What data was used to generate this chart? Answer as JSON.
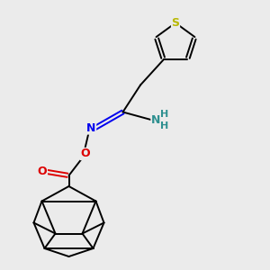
{
  "background_color": "#ebebeb",
  "figsize": [
    3.0,
    3.0
  ],
  "dpi": 100,
  "atom_colors": {
    "S": "#b8b800",
    "N_blue": "#0000ee",
    "N_teal": "#2e9090",
    "O_red": "#dd0000",
    "C": "#000000"
  },
  "lw": 1.4,
  "xlim": [
    0,
    10
  ],
  "ylim": [
    0,
    10
  ]
}
